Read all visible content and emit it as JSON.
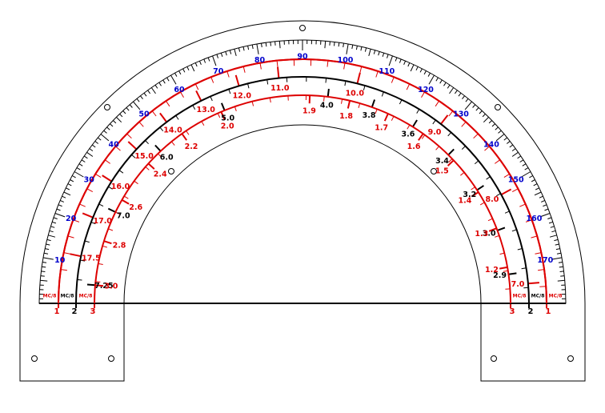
{
  "colors": {
    "black": "#000000",
    "red": "#dd0000",
    "blue": "#0000cc"
  },
  "degree_scale": {
    "labels": [
      "10",
      "20",
      "30",
      "40",
      "50",
      "60",
      "70",
      "80",
      "90",
      "100",
      "110",
      "120",
      "130",
      "140",
      "150",
      "160",
      "170"
    ]
  },
  "scale1_left_labels": [
    "17.5",
    "17.0",
    "16.0",
    "15.0",
    "14.0",
    "13.0",
    "12.0",
    "11.0"
  ],
  "scale1_right_labels": [
    "10.0",
    "9.0",
    "8.0",
    "7.0"
  ],
  "scale2_left_labels": [
    "7.25",
    "7.0",
    "6.0",
    "5.0"
  ],
  "scale2_right_labels": [
    "4.0",
    "3.8",
    "3.6",
    "3.4",
    "3.2",
    "3.0",
    "2.9"
  ],
  "scale3_left_labels": [
    "3.0",
    "2.8",
    "2.6",
    "2.4",
    "2.2",
    "2.0"
  ],
  "scale3_right_labels": [
    "1.9",
    "1.8",
    "1.7",
    "1.6",
    "1.5",
    "1.4",
    "1.3",
    "1.2"
  ],
  "scale_tags": {
    "mc": "MC/8"
  },
  "scale_numbers": {
    "one": "1",
    "two": "2",
    "three": "3"
  }
}
